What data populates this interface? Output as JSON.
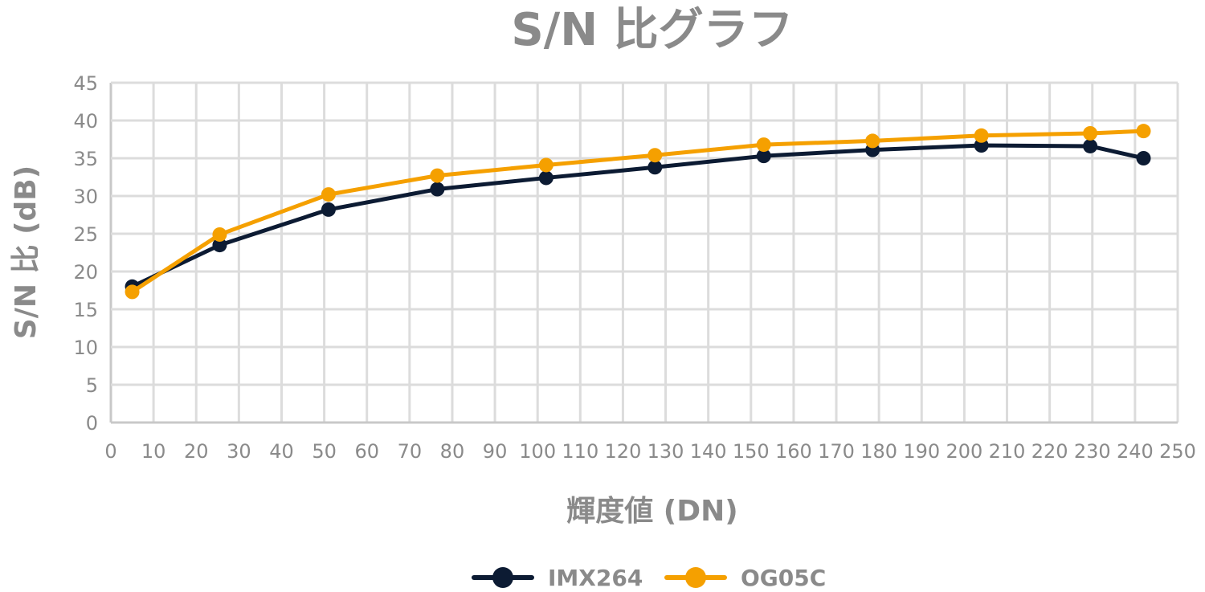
{
  "chart_data": {
    "type": "line",
    "title": "S/N 比グラフ",
    "xlabel": "輝度値 (DN)",
    "ylabel": "S/N 比 (dB)",
    "xlim": [
      0,
      250
    ],
    "ylim": [
      0,
      45
    ],
    "xticks": [
      0,
      10,
      20,
      30,
      40,
      50,
      60,
      70,
      80,
      90,
      100,
      110,
      120,
      130,
      140,
      150,
      160,
      170,
      180,
      190,
      200,
      210,
      220,
      230,
      240,
      250
    ],
    "yticks": [
      0,
      5,
      10,
      15,
      20,
      25,
      30,
      35,
      40,
      45
    ],
    "grid": true,
    "legend": "bottom",
    "series": [
      {
        "name": "IMX264",
        "color": "#0c1b33",
        "x": [
          5,
          25.5,
          51,
          76.5,
          102,
          127.5,
          153,
          178.5,
          204,
          229.5,
          242
        ],
        "y": [
          18.0,
          23.5,
          28.2,
          30.9,
          32.4,
          33.8,
          35.3,
          36.1,
          36.7,
          36.6,
          35.0
        ]
      },
      {
        "name": "OG05C",
        "color": "#f5a000",
        "x": [
          5,
          25.5,
          51,
          76.5,
          102,
          127.5,
          153,
          178.5,
          204,
          229.5,
          242
        ],
        "y": [
          17.3,
          24.9,
          30.2,
          32.7,
          34.1,
          35.4,
          36.8,
          37.3,
          38.0,
          38.3,
          38.6
        ]
      }
    ]
  }
}
